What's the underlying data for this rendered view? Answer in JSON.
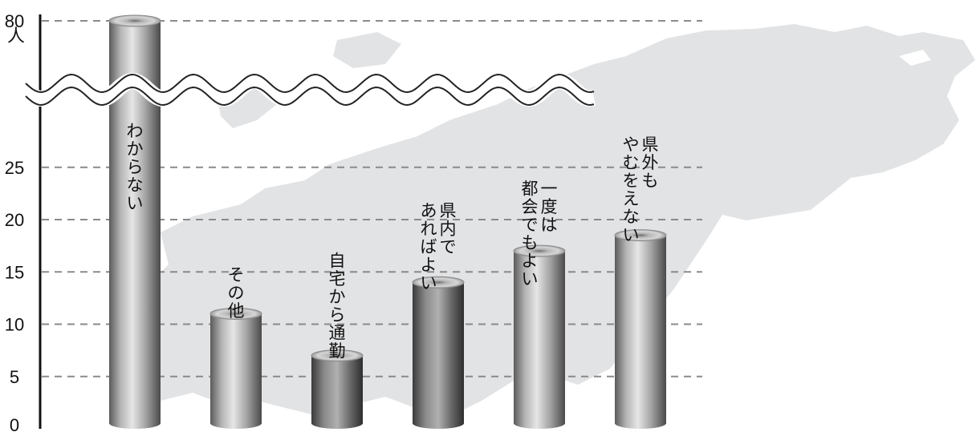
{
  "chart_data": {
    "type": "bar",
    "categories": [
      "わからない",
      "その他",
      "自宅から通勤",
      "県内であればよい",
      "一度は都会でもよい",
      "県外もやむをえない"
    ],
    "category_lines": [
      [
        "わからない"
      ],
      [
        "その他"
      ],
      [
        "自宅から通勤"
      ],
      [
        "県内で",
        "あればよい"
      ],
      [
        "一度は",
        "都会でもよい"
      ],
      [
        "県外も",
        "やむをえない"
      ]
    ],
    "values": [
      80,
      11,
      7,
      14,
      17,
      18.5
    ],
    "y_ticks": [
      0,
      5,
      10,
      15,
      20,
      25,
      80
    ],
    "y_unit": "人",
    "ylim": [
      0,
      80
    ],
    "axis_break": true,
    "grid": "dashed",
    "colors": {
      "background_map": "#e2e3e5",
      "grid": "#8a8a8a",
      "axis": "#111111"
    }
  }
}
